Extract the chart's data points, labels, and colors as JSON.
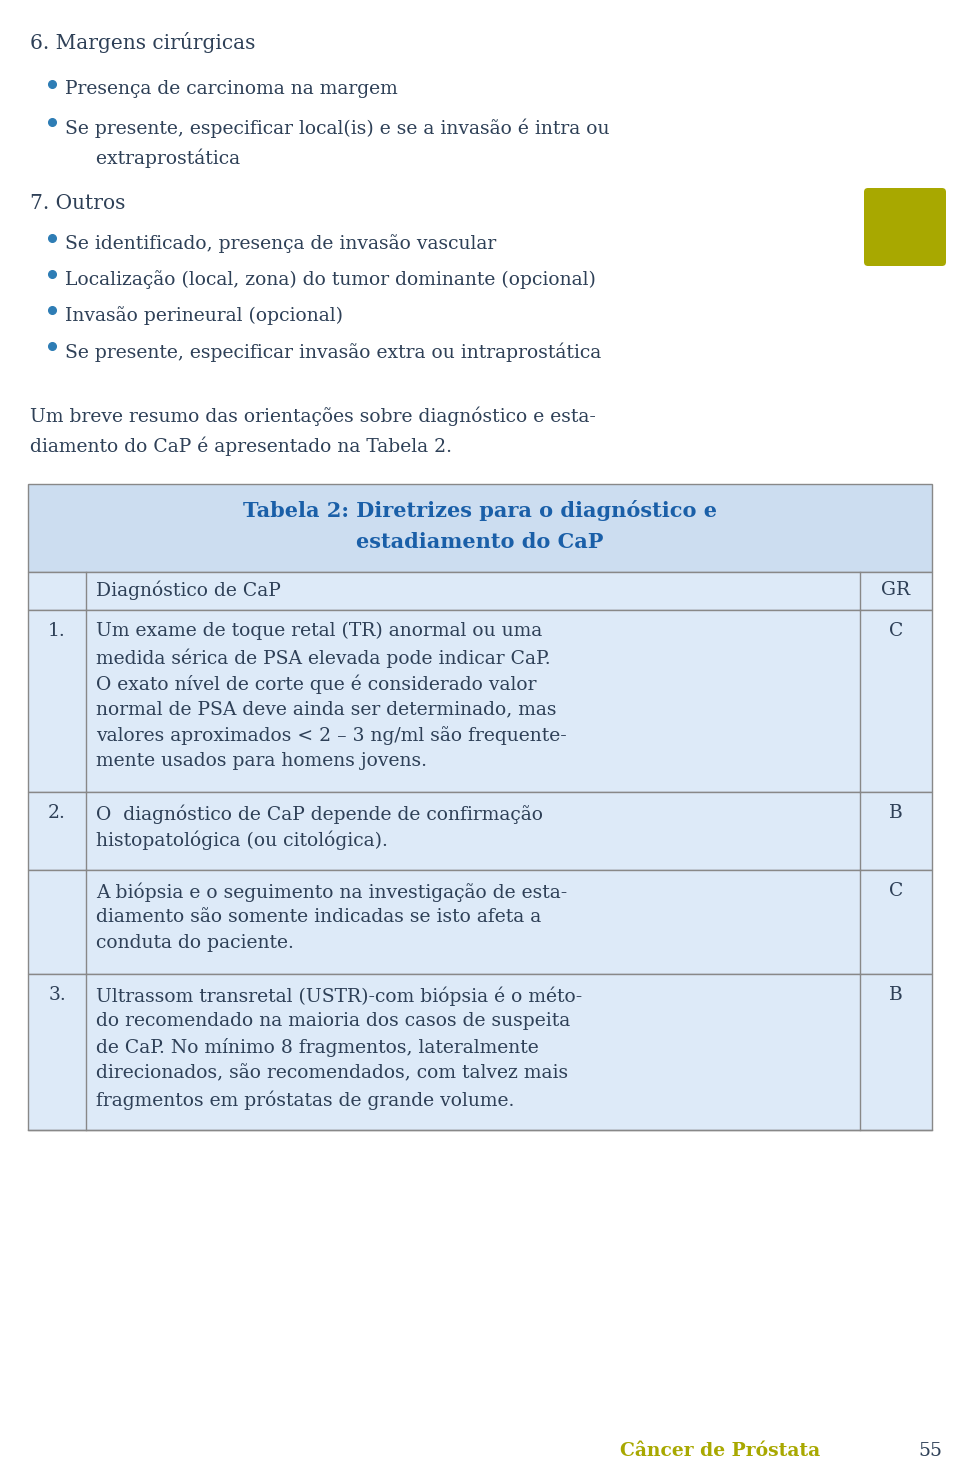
{
  "background_color": "#ffffff",
  "page_number": "55",
  "footer_text": "Câncer de Próstata",
  "footer_color": "#a8a800",
  "text_color": "#2e4057",
  "bullet_color": "#2e7db5",
  "section6_title": "6. Margens cirúrgicas",
  "section6_bullets": [
    "Presença de carcinoma na margem",
    "Se presente, especificar local(is) e se a invasão é intra ou\n    extraprostática"
  ],
  "section7_title": "7. Outros",
  "section7_bullets": [
    "Se identificado, presença de invasão vascular",
    "Localização (local, zona) do tumor dominante (opcional)",
    "Invasão perineural (opcional)",
    "Se presente, especificar invasão extra ou intraprostática"
  ],
  "olive_box_color": "#a8a800",
  "intro_text": "Um breve resumo das orientações sobre diagnóstico e esta-\ndiamento do CaP é apresentado na Tabela 2.",
  "table_bg_header": "#ccddf0",
  "table_bg_row": "#ddeaf8",
  "table_border_color": "#888888",
  "table_title_line1": "Tabela 2: Diretrizes para o diagnóstico e",
  "table_title_line2": "estadiamento do CaP",
  "table_title_color": "#1a5fa8",
  "table_col_header_text": "Diagnóstico de CaP",
  "table_col_header_gr": "GR",
  "table_rows": [
    {
      "num": "1.",
      "text_lines": [
        "Um exame de toque retal (TR) anormal ou uma",
        "medida sérica de PSA elevada pode indicar CaP.",
        "O exato nível de corte que é considerado valor",
        "normal de PSA deve ainda ser determinado, mas",
        "valores aproximados < 2 – 3 ng/ml são frequente-",
        "mente usados para homens jovens."
      ],
      "gr": "C"
    },
    {
      "num": "2.",
      "text_lines": [
        "O  diagnóstico de CaP depende de confirmação",
        "histopatológica (ou citológica)."
      ],
      "gr": "B"
    },
    {
      "num": "",
      "text_lines": [
        "A biópsia e o seguimento na investigação de esta-",
        "diamento são somente indicadas se isto afeta a",
        "conduta do paciente."
      ],
      "gr": "C"
    },
    {
      "num": "3.",
      "text_lines": [
        "Ultrassom transretal (USTR)-com biópsia é o méto-",
        "do recomendado na maioria dos casos de suspeita",
        "de CaP. No mínimo 8 fragmentos, lateralmente",
        "direcionados, são recomendados, com talvez mais",
        "fragmentos em próstatas de grande volume."
      ],
      "gr": "B"
    }
  ]
}
